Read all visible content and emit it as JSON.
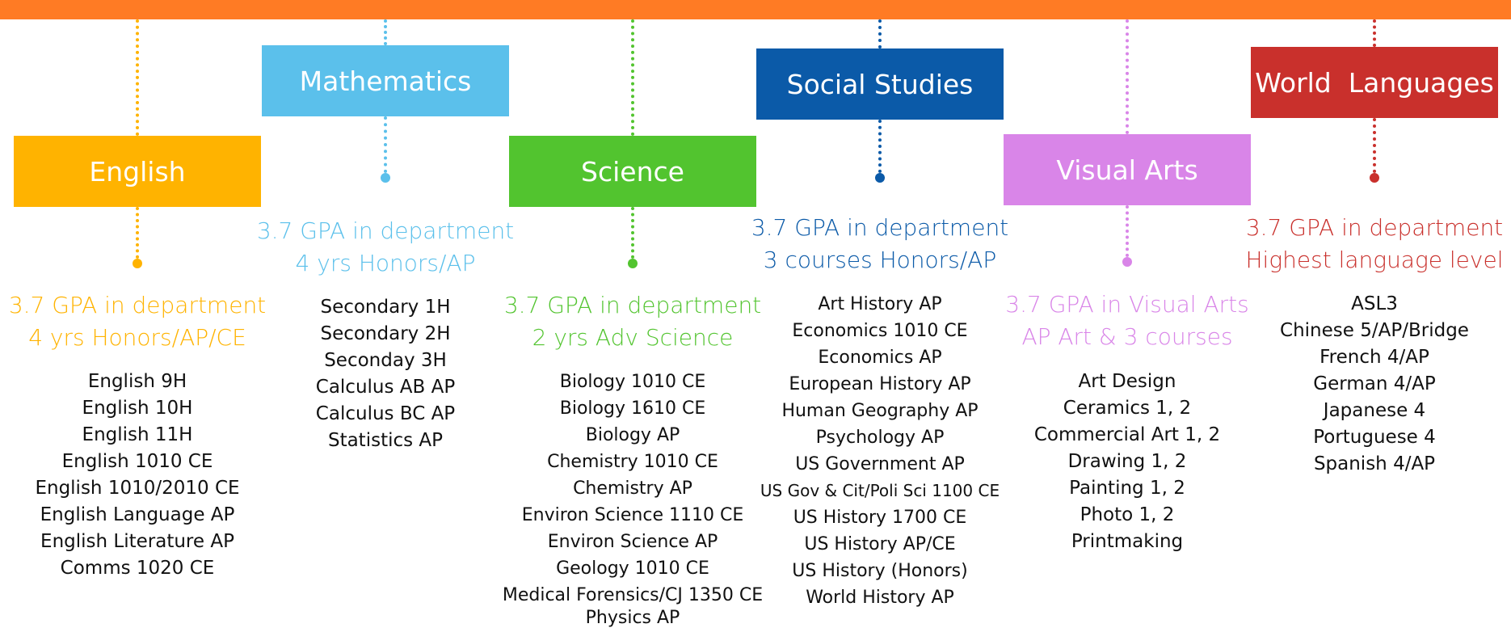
{
  "colors": {
    "top_bar": "#ff7b24",
    "english": "#ffb300",
    "mathematics": "#5bc0eb",
    "science": "#52c42f",
    "social_studies": "#0b5aa8",
    "visual_arts": "#d985e8",
    "world_languages": "#c9302c"
  },
  "departments": {
    "english": {
      "name": "English",
      "req_line1": "3.7 GPA in department",
      "req_line2": "4 yrs Honors/AP/CE",
      "courses": [
        "English 9H",
        "English 10H",
        "English 11H",
        "English 1010 CE",
        "English 1010/2010 CE",
        "English Language AP",
        "English Literature AP",
        "Comms 1020 CE"
      ]
    },
    "mathematics": {
      "name": "Mathematics",
      "req_line1": "3.7 GPA in department",
      "req_line2": "4 yrs Honors/AP",
      "courses": [
        "Secondary 1H",
        "Secondary 2H",
        "Seconday 3H",
        "Calculus AB AP",
        "Calculus BC AP",
        "Statistics AP"
      ]
    },
    "science": {
      "name": "Science",
      "req_line1": "3.7 GPA in department",
      "req_line2": "2 yrs Adv Science",
      "courses": [
        "Biology 1010 CE",
        "Biology 1610 CE",
        "Biology AP",
        "Chemistry 1010 CE",
        "Chemistry AP",
        "Environ Science 1110 CE",
        "Environ Science AP",
        "Geology 1010 CE",
        "Medical Forensics/CJ 1350 CE",
        "Physics AP"
      ]
    },
    "social_studies": {
      "name": "Social Studies",
      "req_line1": "3.7 GPA in department",
      "req_line2": "3 courses Honors/AP",
      "courses": [
        "Art History AP",
        "Economics 1010 CE",
        "Economics AP",
        "European History AP",
        "Human Geography AP",
        "Psychology AP",
        "US Government AP",
        "US Gov & Cit/Poli Sci 1100 CE",
        "US History 1700 CE",
        "US History AP/CE",
        "US History (Honors)",
        "World History AP"
      ]
    },
    "visual_arts": {
      "name": "Visual Arts",
      "req_line1": "3.7 GPA in Visual Arts",
      "req_line2": "AP Art & 3 courses",
      "courses": [
        "Art Design",
        "Ceramics 1, 2",
        "Commercial Art 1, 2",
        "Drawing 1, 2",
        "Painting 1, 2",
        "Photo 1, 2",
        "Printmaking"
      ]
    },
    "world_languages": {
      "name": "World  Languages",
      "req_line1": "3.7 GPA in department",
      "req_line2": "Highest language level",
      "courses": [
        "ASL3",
        "Chinese 5/AP/Bridge",
        "French 4/AP",
        "German 4/AP",
        "Japanese 4",
        "Portuguese 4",
        "Spanish 4/AP"
      ]
    }
  }
}
